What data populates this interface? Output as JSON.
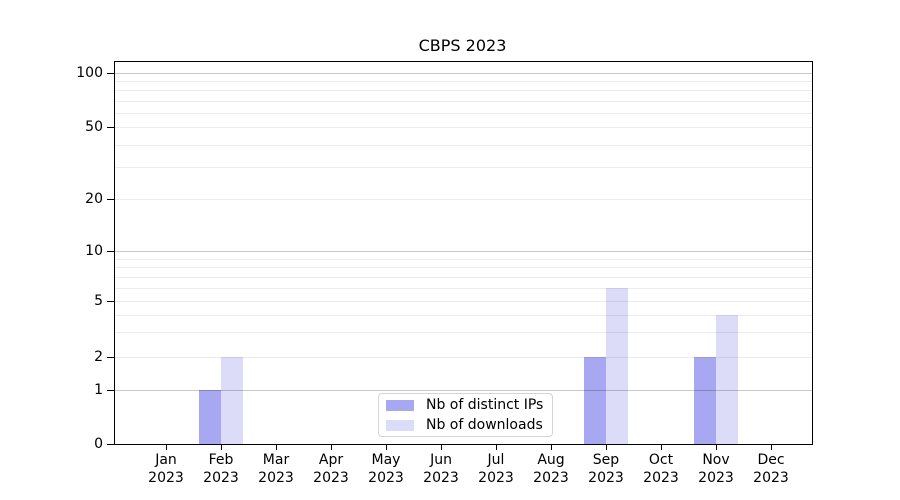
{
  "title": "CBPS 2023",
  "chart_data": {
    "type": "bar",
    "title": "CBPS 2023",
    "categories": [
      "Jan 2023",
      "Feb 2023",
      "Mar 2023",
      "Apr 2023",
      "May 2023",
      "Jun 2023",
      "Jul 2023",
      "Aug 2023",
      "Sep 2023",
      "Oct 2023",
      "Nov 2023",
      "Dec 2023"
    ],
    "series": [
      {
        "name": "Nb of distinct IPs",
        "color": "#a8a7f2",
        "values": [
          0,
          1,
          0,
          0,
          0,
          0,
          0,
          0,
          2,
          0,
          2,
          0
        ]
      },
      {
        "name": "Nb of downloads",
        "color": "#dcdcf8",
        "values": [
          0,
          2,
          0,
          0,
          0,
          0,
          0,
          0,
          6,
          0,
          4,
          0
        ]
      }
    ],
    "yscale": "symlog",
    "y_ticks": [
      0,
      1,
      2,
      5,
      10,
      20,
      50,
      100
    ],
    "y_tick_labels": [
      "0",
      "1",
      "2",
      "5",
      "10",
      "20",
      "50",
      "100"
    ],
    "major_gridlines": [
      1,
      10,
      100
    ],
    "minor_gridlines": [
      2,
      3,
      4,
      5,
      6,
      7,
      8,
      9,
      20,
      30,
      40,
      50,
      60,
      70,
      80,
      90
    ],
    "ylim": [
      0,
      115
    ],
    "xlabel": "",
    "ylabel": "",
    "grid": "horizontal",
    "legend_position": "lower center"
  },
  "colors": {
    "background": "#ffffff",
    "spine": "#000000",
    "major_grid": "rgba(0,0,0,0.21)",
    "minor_grid": "rgba(0,0,0,0.08)",
    "text": "#000000",
    "legend_border": "#d4d4d4"
  }
}
